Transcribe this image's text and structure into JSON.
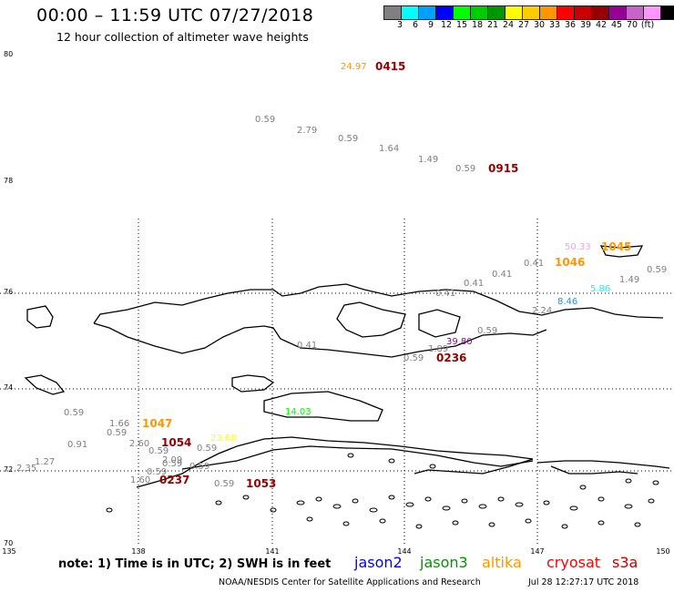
{
  "title": "00:00 – 11:59 UTC 07/27/2018",
  "subtitle": "12 hour collection of altimeter wave heights",
  "scale": {
    "labels": [
      "3",
      "6",
      "9",
      "12",
      "15",
      "18",
      "21",
      "24",
      "27",
      "30",
      "33",
      "36",
      "39",
      "42",
      "45",
      "70",
      "(ft)"
    ],
    "colors": [
      "#808080",
      "#00ffff",
      "#00a0ff",
      "#0000ff",
      "#00ff00",
      "#00cc00",
      "#009600",
      "#ffff00",
      "#ffcc00",
      "#ff9600",
      "#ff0000",
      "#c80000",
      "#960000",
      "#960096",
      "#c864c8",
      "#ff96ff",
      "#000000"
    ]
  },
  "axes": {
    "lat_labels": [
      "80",
      "78",
      "76",
      "74",
      "72",
      "70"
    ],
    "lon_labels": [
      "135",
      "138",
      "141",
      "144",
      "147",
      "150"
    ]
  },
  "wave_heights": [
    {
      "text": "24.97",
      "color": "#ff9600"
    },
    {
      "text": "0.59",
      "color": "#808080"
    },
    {
      "text": "2.79",
      "color": "#808080"
    },
    {
      "text": "0.59",
      "color": "#808080"
    },
    {
      "text": "1.64",
      "color": "#808080"
    },
    {
      "text": "1.49",
      "color": "#808080"
    },
    {
      "text": "0.59",
      "color": "#808080"
    },
    {
      "text": "50.33",
      "color": "#ff96ff"
    },
    {
      "text": "0.41",
      "color": "#808080"
    },
    {
      "text": "0.41",
      "color": "#808080"
    },
    {
      "text": "1.49",
      "color": "#808080"
    },
    {
      "text": "0.59",
      "color": "#808080"
    },
    {
      "text": "0.41",
      "color": "#808080"
    },
    {
      "text": "0.41",
      "color": "#808080"
    },
    {
      "text": "5.86",
      "color": "#00ffff"
    },
    {
      "text": "8.46",
      "color": "#00a0ff"
    },
    {
      "text": "2.24",
      "color": "#808080"
    },
    {
      "text": "39.80",
      "color": "#960096"
    },
    {
      "text": "0.59",
      "color": "#808080"
    },
    {
      "text": "1.89",
      "color": "#808080"
    },
    {
      "text": "0.59",
      "color": "#808080"
    },
    {
      "text": "0.41",
      "color": "#808080"
    },
    {
      "text": "14.03",
      "color": "#00ff00"
    },
    {
      "text": "0.59",
      "color": "#808080"
    },
    {
      "text": "1.66",
      "color": "#808080"
    },
    {
      "text": "0.59",
      "color": "#808080"
    },
    {
      "text": "0.91",
      "color": "#808080"
    },
    {
      "text": "2.60",
      "color": "#808080"
    },
    {
      "text": "0.59",
      "color": "#808080"
    },
    {
      "text": "23.68",
      "color": "#ffff00"
    },
    {
      "text": "0.59",
      "color": "#808080"
    },
    {
      "text": "1.27",
      "color": "#808080"
    },
    {
      "text": "2.35",
      "color": "#808080"
    },
    {
      "text": "0.59",
      "color": "#808080"
    },
    {
      "text": "2.09",
      "color": "#808080"
    },
    {
      "text": "1.60",
      "color": "#808080"
    },
    {
      "text": "0.59",
      "color": "#808080"
    },
    {
      "text": "0.59",
      "color": "#808080"
    },
    {
      "text": "0.59",
      "color": "#808080"
    }
  ],
  "time_labels": [
    {
      "text": "0415",
      "color": "#960000"
    },
    {
      "text": "0915",
      "color": "#960000"
    },
    {
      "text": "1045",
      "color": "#ff9600"
    },
    {
      "text": "1046",
      "color": "#ff9600"
    },
    {
      "text": "0236",
      "color": "#960000"
    },
    {
      "text": "1047",
      "color": "#ff9600"
    },
    {
      "text": "1054",
      "color": "#960000"
    },
    {
      "text": "0237",
      "color": "#960000"
    },
    {
      "text": "1053",
      "color": "#960000"
    }
  ],
  "note": "note: 1) Time is in UTC; 2) SWH is in feet",
  "legend": [
    {
      "text": "jason2",
      "color": "#0000ff"
    },
    {
      "text": "jason3",
      "color": "#009600"
    },
    {
      "text": "altika",
      "color": "#ff9600"
    },
    {
      "text": "cryosat",
      "color": "#ff0000"
    },
    {
      "text": "s3a",
      "color": "#c80000"
    }
  ],
  "footer": "NOAA/NESDIS Center for Satellite Applications and Research",
  "footer_time": "Jul 28 12:27:17 UTC 2018"
}
